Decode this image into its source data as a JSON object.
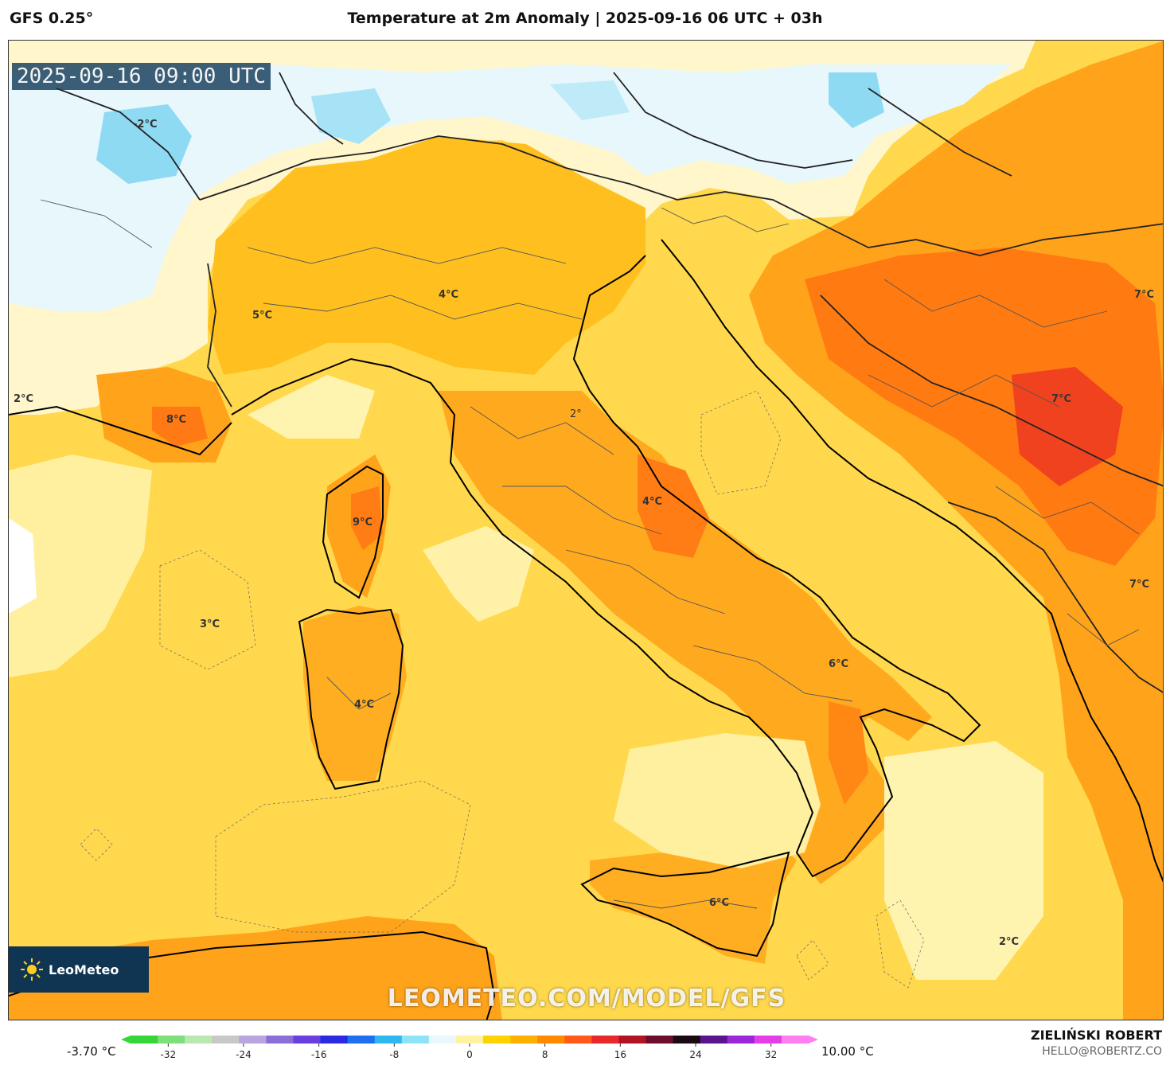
{
  "header": {
    "model": "GFS 0.25°",
    "title": "Temperature at 2m Anomaly | 2025-09-16 06 UTC + 03h"
  },
  "map": {
    "timestamp": "2025-09-16 09:00 UTC",
    "logo": "LeoMeteo",
    "watermark": "LEOMETEO.COM/MODEL/GFS",
    "labels": [
      {
        "id": "alps-west",
        "text": "-2°C"
      },
      {
        "id": "piedmont",
        "text": "5°C"
      },
      {
        "id": "po-valley",
        "text": "4°C"
      },
      {
        "id": "provence",
        "text": "8°C"
      },
      {
        "id": "west-edge",
        "text": "2°C"
      },
      {
        "id": "corsica",
        "text": "9°C"
      },
      {
        "id": "tyrrhenian-west",
        "text": "3°C"
      },
      {
        "id": "sardinia",
        "text": "4°C"
      },
      {
        "id": "abruzzo",
        "text": "4°C"
      },
      {
        "id": "puglia",
        "text": "6°C"
      },
      {
        "id": "sicily",
        "text": "6°C"
      },
      {
        "id": "ionian",
        "text": "2°C"
      },
      {
        "id": "balkans-north",
        "text": "7°C"
      },
      {
        "id": "balkans-center",
        "text": "7°C"
      },
      {
        "id": "balkans-south",
        "text": "7°C"
      },
      {
        "id": "tuscany",
        "text": "2°"
      }
    ]
  },
  "colorbar": {
    "min_label": "-3.70 °C",
    "max_label": "10.00 °C",
    "ticks": [
      "-32",
      "-24",
      "-16",
      "-8",
      "0",
      "8",
      "16",
      "24",
      "32"
    ],
    "tick_values": [
      -32,
      -24,
      -16,
      -8,
      0,
      8,
      16,
      24,
      32
    ],
    "range": [
      -36,
      36
    ],
    "colors": [
      "#35d63a",
      "#7de07a",
      "#b9e8b0",
      "#c8c8c8",
      "#b9a6e0",
      "#8c6ed8",
      "#6a3ee0",
      "#2a2ae0",
      "#1f6ff0",
      "#2eb8f0",
      "#8fe3f7",
      "#e8f8fc",
      "#fff2a0",
      "#ffd300",
      "#ffb000",
      "#ff8a00",
      "#ff5a1a",
      "#e8282a",
      "#b31424",
      "#6b0d2e",
      "#1a0a14",
      "#5a148c",
      "#9a28d8",
      "#e63ee6",
      "#ff7ff0"
    ]
  },
  "credits": {
    "author": "ZIELIŃSKI ROBERT",
    "contact": "HELLO@ROBERTZ.CO"
  }
}
